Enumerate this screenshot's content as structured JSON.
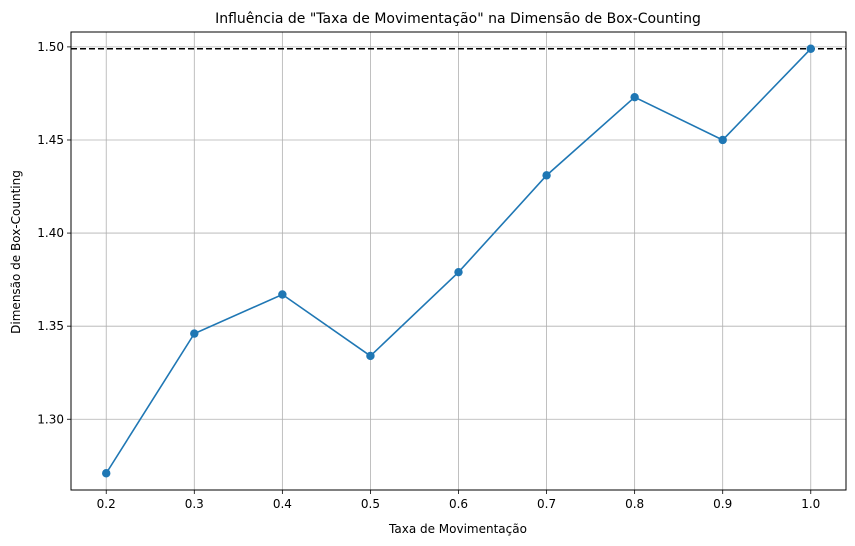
{
  "chart_data": {
    "type": "line",
    "title": "Influência de \"Taxa de Movimentação\" na Dimensão de Box-Counting",
    "xlabel": "Taxa de Movimentação",
    "ylabel": "Dimensão de Box-Counting",
    "x": [
      0.2,
      0.3,
      0.4,
      0.5,
      0.6,
      0.7,
      0.8,
      0.9,
      1.0
    ],
    "xlim": [
      0.16,
      1.04
    ],
    "ylim": [
      1.262,
      1.508
    ],
    "x_ticks": [
      0.2,
      0.3,
      0.4,
      0.5,
      0.6,
      0.7,
      0.8,
      0.9,
      1.0
    ],
    "x_tick_labels": [
      "0.2",
      "0.3",
      "0.4",
      "0.5",
      "0.6",
      "0.7",
      "0.8",
      "0.9",
      "1.0"
    ],
    "y_ticks": [
      1.3,
      1.35,
      1.4,
      1.45,
      1.5
    ],
    "y_tick_labels": [
      "1.30",
      "1.35",
      "1.40",
      "1.45",
      "1.50"
    ],
    "grid": true,
    "series": [
      {
        "values": [
          1.271,
          1.346,
          1.367,
          1.334,
          1.379,
          1.431,
          1.473,
          1.45,
          1.499
        ],
        "color": "#1f77b4",
        "marker": "circle"
      }
    ],
    "reference_line": {
      "y": 1.499,
      "style": "dashed",
      "color": "#000000"
    }
  }
}
